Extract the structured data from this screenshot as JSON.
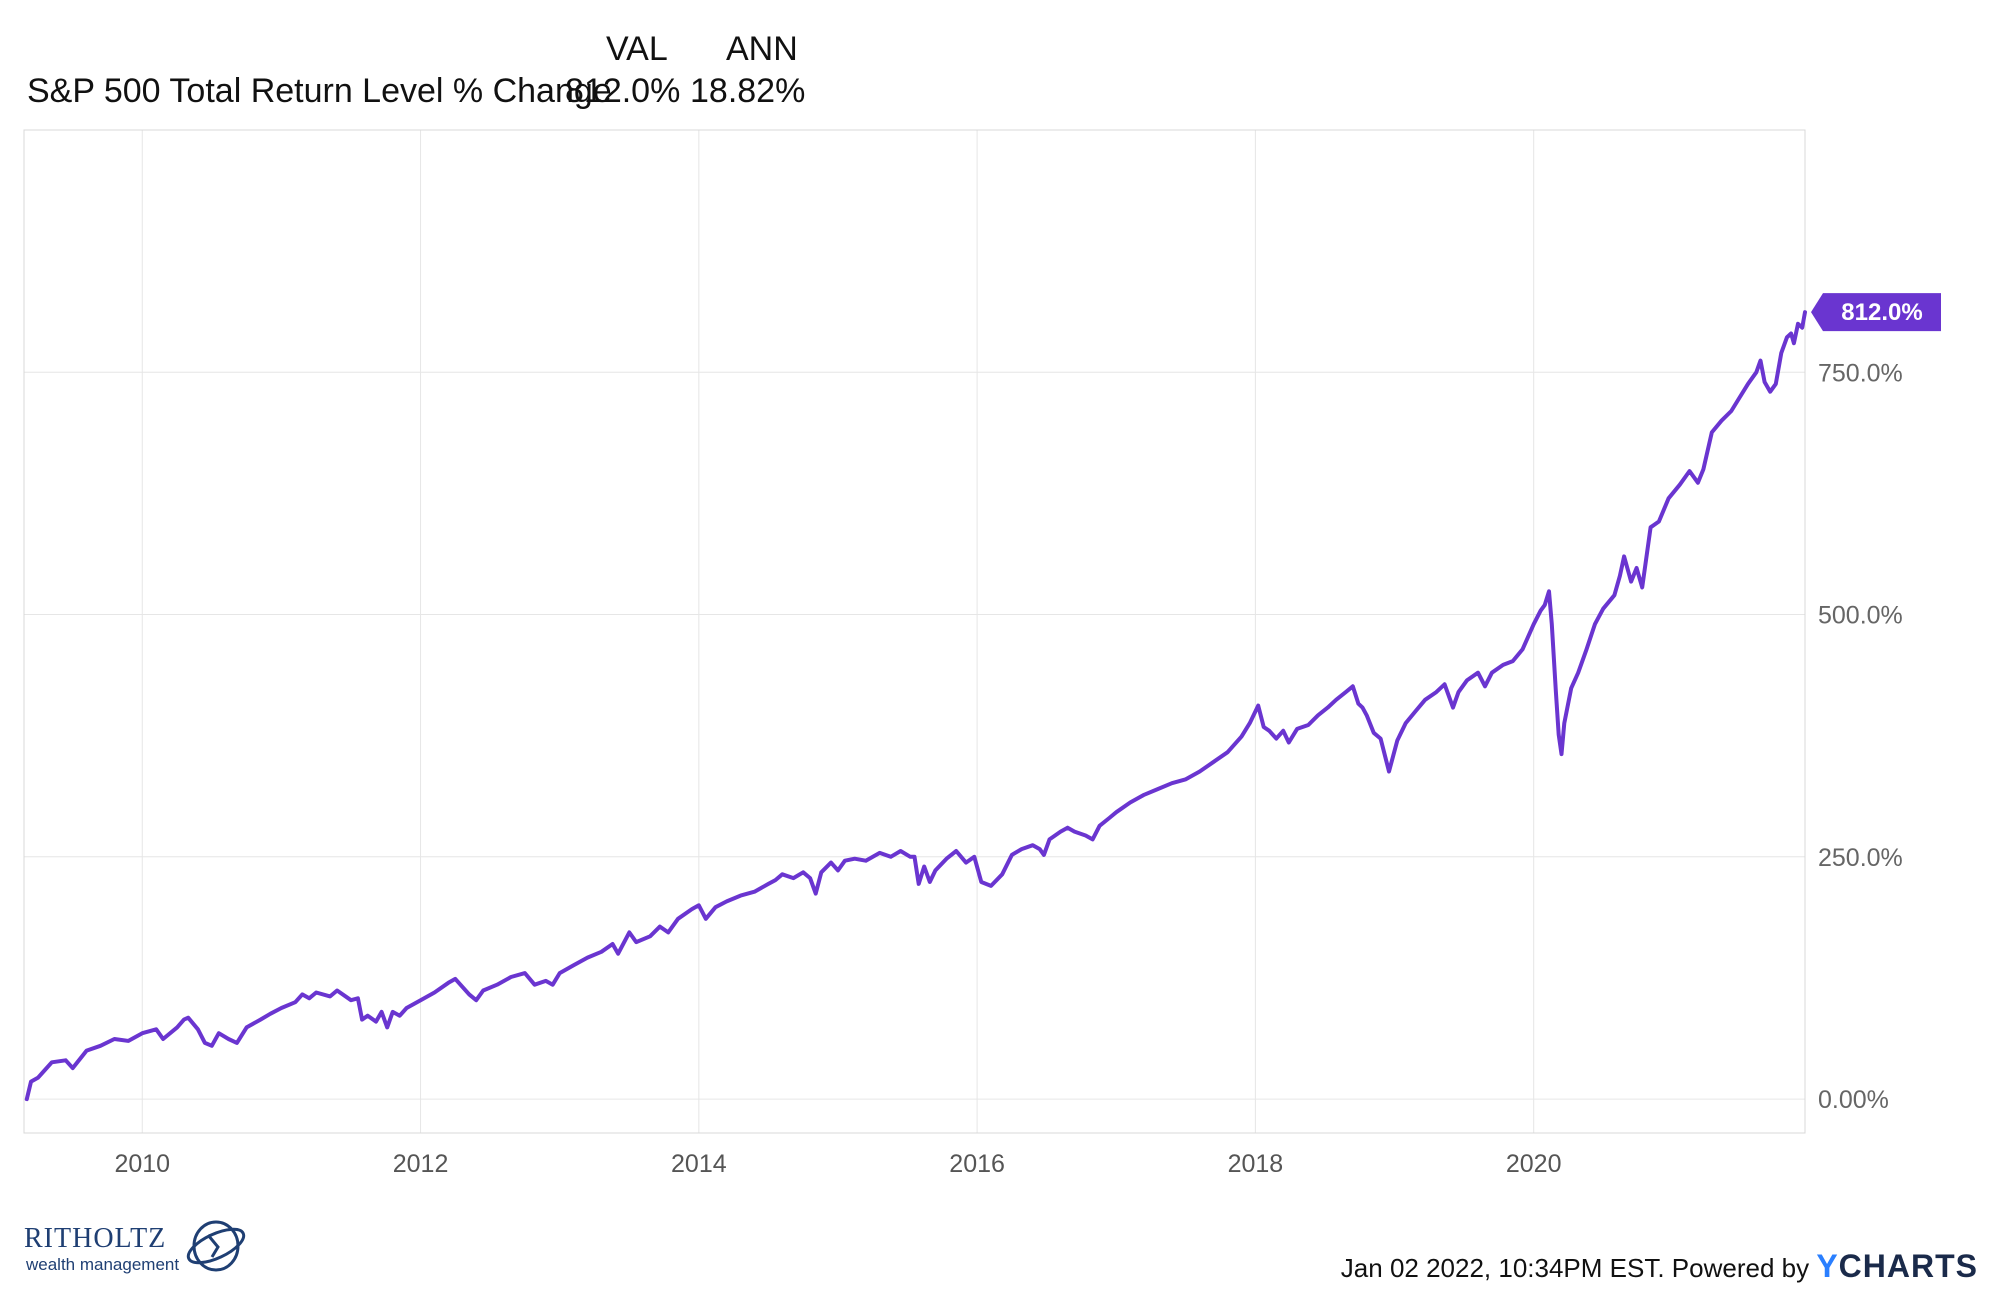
{
  "legend": {
    "col_val": "VAL",
    "col_ann": "ANN",
    "series_label": "S&P 500 Total Return Level % Change",
    "val": "812.0%",
    "ann": "18.82%"
  },
  "footer": {
    "stamp": "Jan 02 2022, 10:34PM EST. Powered by",
    "brand_y": "Y",
    "brand_rest": "CHARTS"
  },
  "logo": {
    "title": "RITHOLTZ",
    "subtitle": "wealth management"
  },
  "colors": {
    "line": "#6a35d0",
    "grid": "#e6e6e6",
    "badge": "#6a35d0"
  },
  "chart_data": {
    "type": "line",
    "title": "",
    "xlabel": "",
    "ylabel": "",
    "xlim": [
      2009.15,
      2021.95
    ],
    "ylim": [
      -35,
      1000
    ],
    "grid": true,
    "x_ticks": [
      2010,
      2012,
      2014,
      2016,
      2018,
      2020
    ],
    "x_tick_labels": [
      "2010",
      "2012",
      "2014",
      "2016",
      "2018",
      "2020"
    ],
    "y_ticks": [
      0,
      250,
      500,
      750
    ],
    "y_tick_labels": [
      "0.00%",
      "250.0%",
      "500.0%",
      "750.0%"
    ],
    "last_value_label": "812.0%",
    "series": [
      {
        "values": [
          [
            2009.17,
            0
          ],
          [
            2009.2,
            18
          ],
          [
            2009.25,
            22
          ],
          [
            2009.3,
            30
          ],
          [
            2009.35,
            38
          ],
          [
            2009.45,
            40
          ],
          [
            2009.5,
            32
          ],
          [
            2009.6,
            50
          ],
          [
            2009.7,
            55
          ],
          [
            2009.8,
            62
          ],
          [
            2009.9,
            60
          ],
          [
            2010.0,
            68
          ],
          [
            2010.1,
            72
          ],
          [
            2010.15,
            62
          ],
          [
            2010.25,
            74
          ],
          [
            2010.3,
            82
          ],
          [
            2010.33,
            84
          ],
          [
            2010.4,
            72
          ],
          [
            2010.45,
            58
          ],
          [
            2010.5,
            55
          ],
          [
            2010.55,
            68
          ],
          [
            2010.62,
            62
          ],
          [
            2010.68,
            58
          ],
          [
            2010.75,
            74
          ],
          [
            2010.85,
            82
          ],
          [
            2010.92,
            88
          ],
          [
            2011.0,
            94
          ],
          [
            2011.1,
            100
          ],
          [
            2011.15,
            108
          ],
          [
            2011.2,
            104
          ],
          [
            2011.25,
            110
          ],
          [
            2011.35,
            106
          ],
          [
            2011.4,
            112
          ],
          [
            2011.5,
            102
          ],
          [
            2011.55,
            104
          ],
          [
            2011.58,
            82
          ],
          [
            2011.62,
            86
          ],
          [
            2011.68,
            80
          ],
          [
            2011.72,
            90
          ],
          [
            2011.76,
            74
          ],
          [
            2011.8,
            90
          ],
          [
            2011.85,
            86
          ],
          [
            2011.9,
            94
          ],
          [
            2012.0,
            102
          ],
          [
            2012.1,
            110
          ],
          [
            2012.2,
            120
          ],
          [
            2012.25,
            124
          ],
          [
            2012.35,
            108
          ],
          [
            2012.4,
            102
          ],
          [
            2012.45,
            112
          ],
          [
            2012.55,
            118
          ],
          [
            2012.65,
            126
          ],
          [
            2012.75,
            130
          ],
          [
            2012.82,
            118
          ],
          [
            2012.9,
            122
          ],
          [
            2012.95,
            118
          ],
          [
            2013.0,
            130
          ],
          [
            2013.1,
            138
          ],
          [
            2013.2,
            146
          ],
          [
            2013.3,
            152
          ],
          [
            2013.38,
            160
          ],
          [
            2013.42,
            150
          ],
          [
            2013.5,
            172
          ],
          [
            2013.55,
            162
          ],
          [
            2013.65,
            168
          ],
          [
            2013.72,
            178
          ],
          [
            2013.78,
            172
          ],
          [
            2013.85,
            186
          ],
          [
            2013.95,
            196
          ],
          [
            2014.0,
            200
          ],
          [
            2014.05,
            186
          ],
          [
            2014.12,
            198
          ],
          [
            2014.2,
            204
          ],
          [
            2014.3,
            210
          ],
          [
            2014.4,
            214
          ],
          [
            2014.5,
            222
          ],
          [
            2014.55,
            226
          ],
          [
            2014.6,
            232
          ],
          [
            2014.68,
            228
          ],
          [
            2014.75,
            234
          ],
          [
            2014.8,
            228
          ],
          [
            2014.84,
            212
          ],
          [
            2014.88,
            234
          ],
          [
            2014.95,
            244
          ],
          [
            2015.0,
            236
          ],
          [
            2015.05,
            246
          ],
          [
            2015.12,
            248
          ],
          [
            2015.2,
            246
          ],
          [
            2015.3,
            254
          ],
          [
            2015.38,
            250
          ],
          [
            2015.45,
            256
          ],
          [
            2015.52,
            250
          ],
          [
            2015.55,
            250
          ],
          [
            2015.58,
            222
          ],
          [
            2015.62,
            240
          ],
          [
            2015.66,
            224
          ],
          [
            2015.7,
            236
          ],
          [
            2015.78,
            248
          ],
          [
            2015.85,
            256
          ],
          [
            2015.92,
            244
          ],
          [
            2015.98,
            250
          ],
          [
            2016.03,
            224
          ],
          [
            2016.1,
            220
          ],
          [
            2016.18,
            232
          ],
          [
            2016.25,
            252
          ],
          [
            2016.32,
            258
          ],
          [
            2016.4,
            262
          ],
          [
            2016.45,
            258
          ],
          [
            2016.48,
            252
          ],
          [
            2016.52,
            268
          ],
          [
            2016.6,
            276
          ],
          [
            2016.65,
            280
          ],
          [
            2016.7,
            276
          ],
          [
            2016.78,
            272
          ],
          [
            2016.83,
            268
          ],
          [
            2016.88,
            282
          ],
          [
            2016.95,
            290
          ],
          [
            2017.0,
            296
          ],
          [
            2017.1,
            306
          ],
          [
            2017.2,
            314
          ],
          [
            2017.3,
            320
          ],
          [
            2017.4,
            326
          ],
          [
            2017.5,
            330
          ],
          [
            2017.6,
            338
          ],
          [
            2017.7,
            348
          ],
          [
            2017.8,
            358
          ],
          [
            2017.9,
            374
          ],
          [
            2017.96,
            388
          ],
          [
            2018.02,
            406
          ],
          [
            2018.06,
            384
          ],
          [
            2018.1,
            380
          ],
          [
            2018.15,
            372
          ],
          [
            2018.2,
            380
          ],
          [
            2018.24,
            368
          ],
          [
            2018.3,
            382
          ],
          [
            2018.38,
            386
          ],
          [
            2018.45,
            396
          ],
          [
            2018.52,
            404
          ],
          [
            2018.58,
            412
          ],
          [
            2018.65,
            420
          ],
          [
            2018.7,
            426
          ],
          [
            2018.74,
            408
          ],
          [
            2018.77,
            404
          ],
          [
            2018.8,
            396
          ],
          [
            2018.85,
            378
          ],
          [
            2018.9,
            372
          ],
          [
            2018.96,
            338
          ],
          [
            2019.02,
            370
          ],
          [
            2019.08,
            388
          ],
          [
            2019.15,
            400
          ],
          [
            2019.22,
            412
          ],
          [
            2019.3,
            420
          ],
          [
            2019.36,
            428
          ],
          [
            2019.42,
            404
          ],
          [
            2019.46,
            420
          ],
          [
            2019.52,
            432
          ],
          [
            2019.6,
            440
          ],
          [
            2019.65,
            426
          ],
          [
            2019.7,
            440
          ],
          [
            2019.78,
            448
          ],
          [
            2019.85,
            452
          ],
          [
            2019.92,
            464
          ],
          [
            2020.0,
            490
          ],
          [
            2020.05,
            504
          ],
          [
            2020.08,
            510
          ],
          [
            2020.11,
            524
          ],
          [
            2020.13,
            490
          ],
          [
            2020.16,
            420
          ],
          [
            2020.18,
            376
          ],
          [
            2020.2,
            356
          ],
          [
            2020.22,
            388
          ],
          [
            2020.27,
            424
          ],
          [
            2020.32,
            440
          ],
          [
            2020.38,
            464
          ],
          [
            2020.44,
            490
          ],
          [
            2020.5,
            506
          ],
          [
            2020.58,
            520
          ],
          [
            2020.62,
            540
          ],
          [
            2020.65,
            560
          ],
          [
            2020.7,
            534
          ],
          [
            2020.74,
            548
          ],
          [
            2020.78,
            528
          ],
          [
            2020.84,
            590
          ],
          [
            2020.9,
            596
          ],
          [
            2020.97,
            620
          ],
          [
            2021.05,
            634
          ],
          [
            2021.12,
            648
          ],
          [
            2021.18,
            636
          ],
          [
            2021.22,
            650
          ],
          [
            2021.28,
            688
          ],
          [
            2021.35,
            700
          ],
          [
            2021.42,
            710
          ],
          [
            2021.48,
            724
          ],
          [
            2021.54,
            738
          ],
          [
            2021.6,
            750
          ],
          [
            2021.63,
            762
          ],
          [
            2021.66,
            740
          ],
          [
            2021.7,
            730
          ],
          [
            2021.74,
            738
          ],
          [
            2021.78,
            770
          ],
          [
            2021.82,
            786
          ],
          [
            2021.85,
            790
          ],
          [
            2021.87,
            780
          ],
          [
            2021.9,
            800
          ],
          [
            2021.93,
            796
          ],
          [
            2021.95,
            812
          ]
        ]
      }
    ]
  }
}
